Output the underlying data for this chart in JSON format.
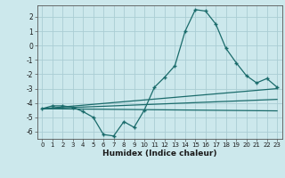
{
  "title": "",
  "xlabel": "Humidex (Indice chaleur)",
  "ylabel": "",
  "bg_color": "#cce8ec",
  "grid_color": "#aacdd4",
  "line_color": "#1a6b6b",
  "xlim": [
    -0.5,
    23.5
  ],
  "ylim": [
    -6.5,
    2.8
  ],
  "yticks": [
    -6,
    -5,
    -4,
    -3,
    -2,
    -1,
    0,
    1,
    2
  ],
  "xticks": [
    0,
    1,
    2,
    3,
    4,
    5,
    6,
    7,
    8,
    9,
    10,
    11,
    12,
    13,
    14,
    15,
    16,
    17,
    18,
    19,
    20,
    21,
    22,
    23
  ],
  "series1_x": [
    0,
    1,
    2,
    3,
    4,
    5,
    6,
    7,
    8,
    9,
    10,
    11,
    12,
    13,
    14,
    15,
    16,
    17,
    18,
    19,
    20,
    21,
    22,
    23
  ],
  "series1_y": [
    -4.4,
    -4.2,
    -4.2,
    -4.3,
    -4.6,
    -5.0,
    -6.2,
    -6.3,
    -5.3,
    -5.7,
    -4.5,
    -2.9,
    -2.2,
    -1.4,
    1.0,
    2.5,
    2.4,
    1.5,
    -0.2,
    -1.2,
    -2.1,
    -2.6,
    -2.3,
    -2.9
  ],
  "series2_x": [
    0,
    23
  ],
  "series2_y": [
    -4.4,
    -3.0
  ],
  "series3_x": [
    0,
    23
  ],
  "series3_y": [
    -4.4,
    -4.55
  ],
  "series4_x": [
    0,
    23
  ],
  "series4_y": [
    -4.4,
    -3.75
  ]
}
